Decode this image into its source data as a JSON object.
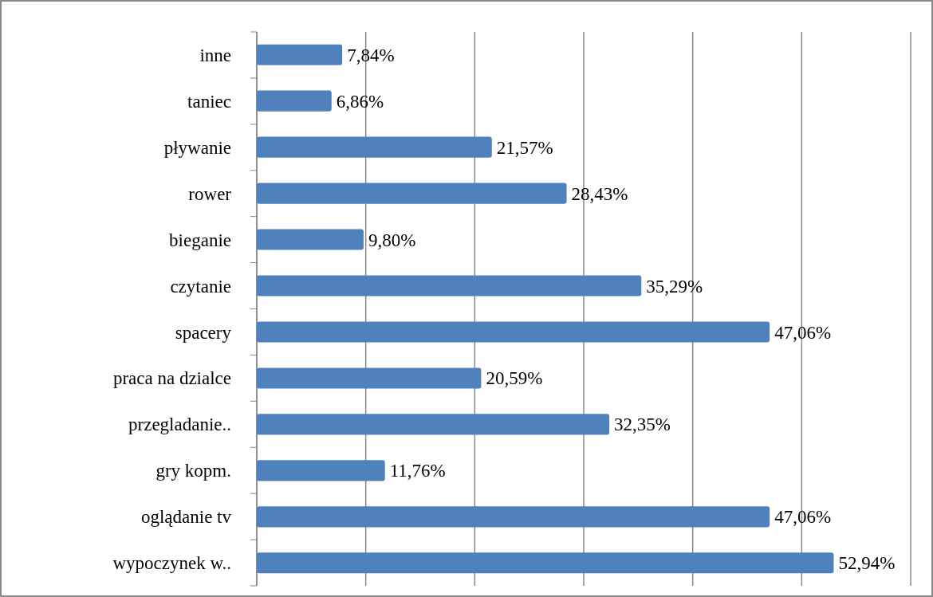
{
  "chart_data": {
    "type": "bar",
    "orientation": "horizontal",
    "categories": [
      "inne",
      "taniec",
      "pływanie",
      "rower",
      "bieganie",
      "czytanie",
      "spacery",
      "praca na dzialce",
      "przegladanie..",
      "gry kopm.",
      "oglądanie tv",
      "wypoczynek w.."
    ],
    "values": [
      7.84,
      6.86,
      21.57,
      28.43,
      9.8,
      35.29,
      47.06,
      20.59,
      32.35,
      11.76,
      47.06,
      52.94
    ],
    "value_labels": [
      "7,84%",
      "6,86%",
      "21,57%",
      "28,43%",
      "9,80%",
      "35,29%",
      "47,06%",
      "20,59%",
      "32,35%",
      "11,76%",
      "47,06%",
      "52,94%"
    ],
    "color": "#4f81bd",
    "xlim": [
      0,
      60
    ],
    "xticks": [
      {
        "value": 0,
        "label": null
      },
      {
        "value": 10,
        "label": null
      },
      {
        "value": 20,
        "label": null
      },
      {
        "value": 30,
        "label": null
      },
      {
        "value": 40,
        "label": null
      },
      {
        "value": 50,
        "label": null
      },
      {
        "value": 60,
        "label": null
      }
    ],
    "grid": "x",
    "tick_labels": "y"
  }
}
